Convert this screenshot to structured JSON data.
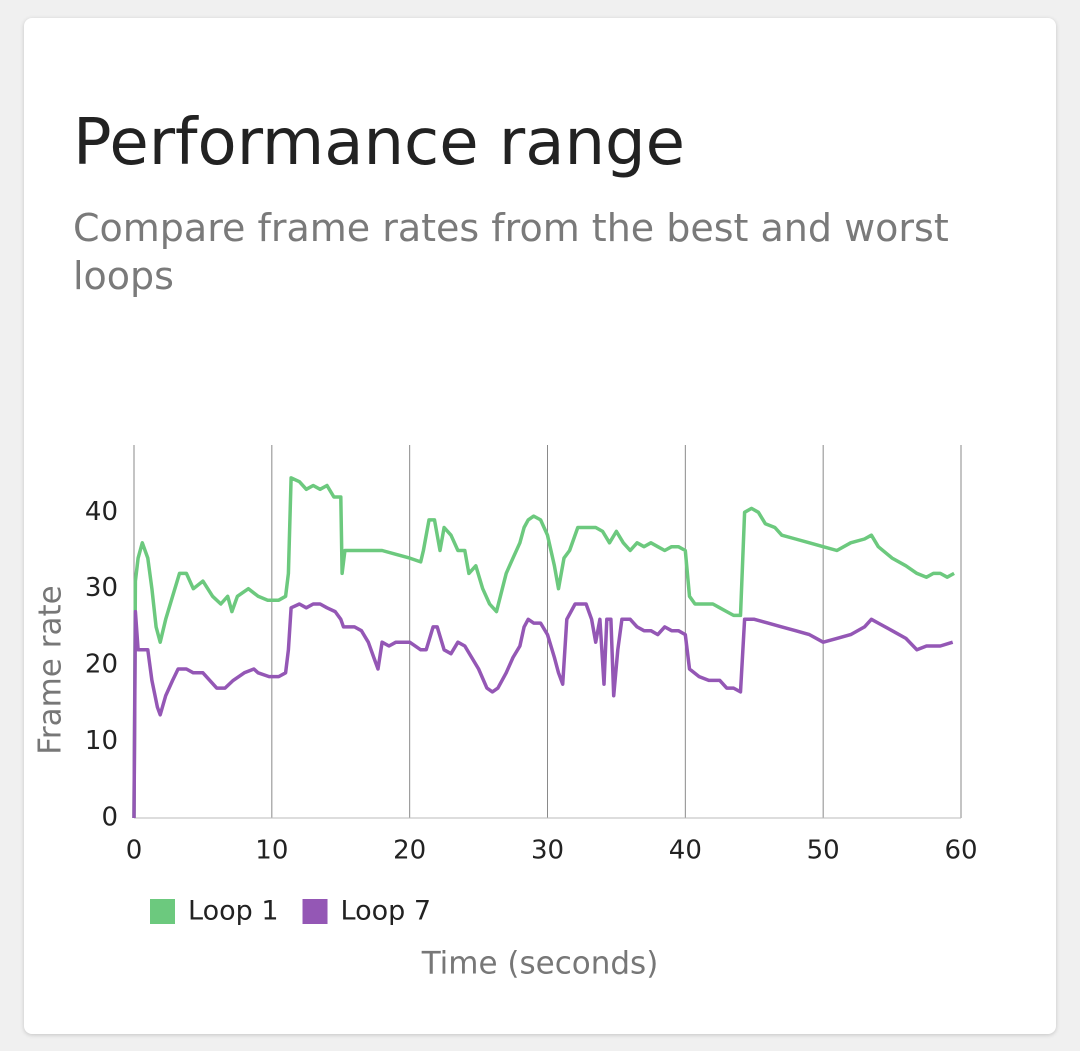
{
  "chart_data": {
    "type": "line",
    "title": "Performance range",
    "subtitle": "Compare frame rates from the best and worst loops",
    "x_label": "Time (seconds)",
    "y_label": "Frame rate",
    "xlim": [
      0,
      60
    ],
    "xticks": [
      0,
      10,
      20,
      30,
      40,
      50,
      60
    ],
    "ylim": [
      0,
      48.8
    ],
    "yticks": [
      0,
      10,
      20,
      30,
      40
    ],
    "grid": "x",
    "legend": "bottom-left",
    "series": [
      {
        "name": "Loop 1",
        "color": "#6cc97e",
        "x": [
          0,
          0.1,
          0.3,
          0.6,
          1,
          1.3,
          1.6,
          1.9,
          2.3,
          2.8,
          3.3,
          3.8,
          4.3,
          5,
          5.7,
          6.3,
          6.8,
          7.1,
          7.5,
          8.3,
          9,
          9.7,
          10.5,
          11,
          11.2,
          11.4,
          12,
          12.5,
          13,
          13.5,
          14,
          14.5,
          15,
          15.1,
          15.3,
          16,
          17,
          18,
          19,
          20,
          20.8,
          21,
          21.4,
          21.8,
          22.2,
          22.5,
          23,
          23.5,
          24,
          24.3,
          24.8,
          25.3,
          25.8,
          26.3,
          27,
          27.5,
          28,
          28.3,
          28.6,
          29,
          29.5,
          30,
          30.5,
          30.8,
          31.2,
          31.6,
          32.2,
          33,
          33.5,
          34,
          34.5,
          35,
          35.5,
          36,
          36.5,
          37,
          37.5,
          38,
          38.5,
          39,
          39.5,
          40,
          40.3,
          40.7,
          41.2,
          42,
          42.5,
          43,
          43.5,
          44,
          44.3,
          44.8,
          45.3,
          45.8,
          46.5,
          47,
          48,
          49,
          50,
          51,
          52,
          53,
          53.5,
          54,
          55,
          56,
          56.8,
          57.5,
          58,
          58.5,
          59,
          59.5
        ],
        "values": [
          0,
          31,
          34,
          36,
          34,
          30,
          25,
          23,
          26,
          29,
          32,
          32,
          30,
          31,
          29,
          28,
          29,
          27,
          29,
          30,
          29,
          28.5,
          28.5,
          29,
          32,
          44.5,
          44,
          43,
          43.5,
          43,
          43.5,
          42,
          42,
          32,
          35,
          35,
          35,
          35,
          34.5,
          34,
          33.5,
          35,
          39,
          39,
          35,
          38,
          37,
          35,
          35,
          32,
          33,
          30,
          28,
          27,
          32,
          34,
          36,
          38,
          39,
          39.5,
          39,
          37,
          33,
          30,
          34,
          35,
          38,
          38,
          38,
          37.5,
          36,
          37.5,
          36,
          35,
          36,
          35.5,
          36,
          35.5,
          35,
          35.5,
          35.5,
          35,
          29,
          28,
          28,
          28,
          27.5,
          27,
          26.5,
          26.5,
          40,
          40.5,
          40,
          38.5,
          38,
          37,
          36.5,
          36,
          35.5,
          35,
          36,
          36.5,
          37,
          35.5,
          34,
          33,
          32,
          31.5,
          32,
          32,
          31.5,
          32
        ]
      },
      {
        "name": "Loop 7",
        "color": "#9457b5",
        "x": [
          0,
          0.1,
          0.3,
          0.7,
          1,
          1.3,
          1.7,
          1.9,
          2.3,
          2.8,
          3.2,
          3.8,
          4.3,
          5,
          5.5,
          6,
          6.6,
          7.2,
          8,
          8.7,
          9,
          9.8,
          10.5,
          11,
          11.2,
          11.4,
          12,
          12.5,
          13,
          13.5,
          14,
          14.6,
          15,
          15.2,
          16,
          16.5,
          17,
          17.4,
          17.7,
          18,
          18.5,
          19,
          20,
          20.8,
          21.2,
          21.7,
          22,
          22.5,
          23,
          23.5,
          24,
          24.5,
          25,
          25.6,
          26,
          26.4,
          27,
          27.5,
          28,
          28.3,
          28.6,
          29,
          29.5,
          30,
          30.5,
          30.8,
          31.1,
          31.4,
          32,
          32.8,
          33.2,
          33.5,
          33.8,
          34.1,
          34.3,
          34.6,
          34.8,
          35.1,
          35.4,
          36,
          36.5,
          37,
          37.5,
          38,
          38.5,
          39,
          39.5,
          40,
          40.3,
          41,
          41.7,
          42.5,
          43,
          43.5,
          44,
          44.3,
          45,
          46,
          47,
          48,
          49,
          50,
          51,
          52,
          53,
          53.5,
          54,
          55,
          56,
          56.8,
          57.5,
          58.5,
          59.4
        ],
        "values": [
          0,
          27,
          22,
          22,
          22,
          18,
          14.5,
          13.5,
          16,
          18,
          19.5,
          19.5,
          19,
          19,
          18,
          17,
          17,
          18,
          19,
          19.5,
          19,
          18.5,
          18.5,
          19,
          22,
          27.5,
          28,
          27.5,
          28,
          28,
          27.5,
          27,
          26,
          25,
          25,
          24.5,
          23,
          21,
          19.5,
          23,
          22.5,
          23,
          23,
          22,
          22,
          25,
          25,
          22,
          21.5,
          23,
          22.5,
          21,
          19.5,
          17,
          16.5,
          17,
          19,
          21,
          22.5,
          25,
          26,
          25.5,
          25.5,
          24,
          21,
          19,
          17.5,
          26,
          28,
          28,
          26,
          23,
          26,
          17.5,
          26,
          26,
          16,
          22,
          26,
          26,
          25,
          24.5,
          24.5,
          24,
          25,
          24.5,
          24.5,
          24,
          19.5,
          18.5,
          18,
          18,
          17,
          17,
          16.5,
          26,
          26,
          25.5,
          25,
          24.5,
          24,
          23,
          23.5,
          24,
          25,
          26,
          25.5,
          24.5,
          23.5,
          22,
          22.5,
          22.5,
          23
        ]
      }
    ]
  }
}
